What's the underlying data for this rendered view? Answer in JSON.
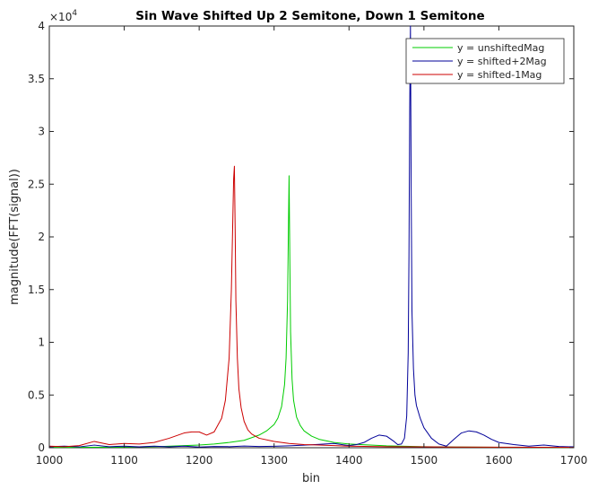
{
  "chart_data": {
    "type": "line",
    "title": "Sin Wave Shifted Up 2 Semitone, Down 1 Semitone",
    "xlabel": "bin",
    "ylabel": "magnitude(FFT(signal))",
    "y_exponent_label": "×10",
    "y_exponent_value": "4",
    "xlim": [
      1000,
      1700
    ],
    "ylim": [
      0,
      40000
    ],
    "x_ticks": [
      1000,
      1100,
      1200,
      1300,
      1400,
      1500,
      1600,
      1700
    ],
    "x_tick_labels": [
      "1000",
      "1100",
      "1200",
      "1300",
      "1400",
      "1500",
      "1600",
      "1700"
    ],
    "y_ticks": [
      0,
      5000,
      10000,
      15000,
      20000,
      25000,
      30000,
      35000,
      40000
    ],
    "y_tick_labels": [
      "0",
      "0.5",
      "1",
      "1.5",
      "2",
      "2.5",
      "3",
      "3.5",
      "4"
    ],
    "grid": false,
    "legend_position": "top-right",
    "series": [
      {
        "name": "y = unshiftedMag",
        "color": "#00cc00",
        "peak_bin": 1320,
        "peak_value": 25800,
        "x": [
          1000,
          1050,
          1100,
          1150,
          1200,
          1220,
          1240,
          1260,
          1280,
          1290,
          1300,
          1305,
          1310,
          1314,
          1316,
          1318,
          1319,
          1320,
          1321,
          1322,
          1324,
          1326,
          1330,
          1335,
          1340,
          1350,
          1360,
          1380,
          1400,
          1450,
          1500,
          1550,
          1600,
          1650,
          1700
        ],
        "values": [
          30,
          40,
          60,
          120,
          250,
          350,
          500,
          700,
          1200,
          1600,
          2200,
          2800,
          3900,
          6000,
          8500,
          14000,
          20000,
          25800,
          18000,
          11000,
          6500,
          4500,
          2900,
          2100,
          1600,
          1100,
          800,
          500,
          350,
          180,
          100,
          60,
          40,
          30,
          20
        ]
      },
      {
        "name": "y = shifted+2Mag",
        "color": "#000099",
        "peak_bin": 1482,
        "peak_value": 40000,
        "x": [
          1000,
          1020,
          1040,
          1060,
          1080,
          1100,
          1120,
          1140,
          1160,
          1180,
          1200,
          1220,
          1240,
          1260,
          1280,
          1300,
          1320,
          1340,
          1360,
          1380,
          1400,
          1410,
          1420,
          1430,
          1440,
          1450,
          1460,
          1465,
          1470,
          1474,
          1477,
          1479,
          1480,
          1481,
          1482,
          1483,
          1484,
          1486,
          1488,
          1490,
          1495,
          1500,
          1510,
          1520,
          1530,
          1540,
          1550,
          1560,
          1570,
          1580,
          1590,
          1600,
          1620,
          1640,
          1660,
          1680,
          1700
        ],
        "values": [
          100,
          150,
          80,
          250,
          100,
          150,
          80,
          150,
          80,
          150,
          60,
          120,
          100,
          160,
          120,
          140,
          180,
          240,
          320,
          400,
          200,
          300,
          500,
          900,
          1200,
          1100,
          600,
          300,
          350,
          900,
          3000,
          9000,
          18000,
          32000,
          40000,
          24000,
          13000,
          7500,
          5000,
          4000,
          2800,
          1900,
          900,
          350,
          150,
          800,
          1400,
          1600,
          1500,
          1200,
          800,
          500,
          300,
          150,
          250,
          120,
          80
        ]
      },
      {
        "name": "y = shifted-1Mag",
        "color": "#cc0000",
        "peak_bin": 1247,
        "peak_value": 26700,
        "x": [
          1000,
          1020,
          1040,
          1060,
          1080,
          1100,
          1120,
          1140,
          1160,
          1180,
          1190,
          1200,
          1210,
          1220,
          1230,
          1235,
          1240,
          1243,
          1245,
          1246,
          1247,
          1248,
          1249,
          1251,
          1253,
          1256,
          1260,
          1265,
          1270,
          1280,
          1300,
          1320,
          1340,
          1360,
          1380,
          1400,
          1450,
          1500,
          1550,
          1600,
          1650,
          1700
        ],
        "values": [
          150,
          100,
          200,
          600,
          300,
          400,
          350,
          500,
          900,
          1400,
          1500,
          1500,
          1200,
          1500,
          2800,
          4500,
          8500,
          15000,
          22000,
          25500,
          26700,
          21000,
          14000,
          8500,
          5600,
          3800,
          2500,
          1700,
          1300,
          900,
          600,
          400,
          300,
          250,
          200,
          150,
          100,
          80,
          60,
          50,
          40,
          30
        ]
      }
    ]
  }
}
